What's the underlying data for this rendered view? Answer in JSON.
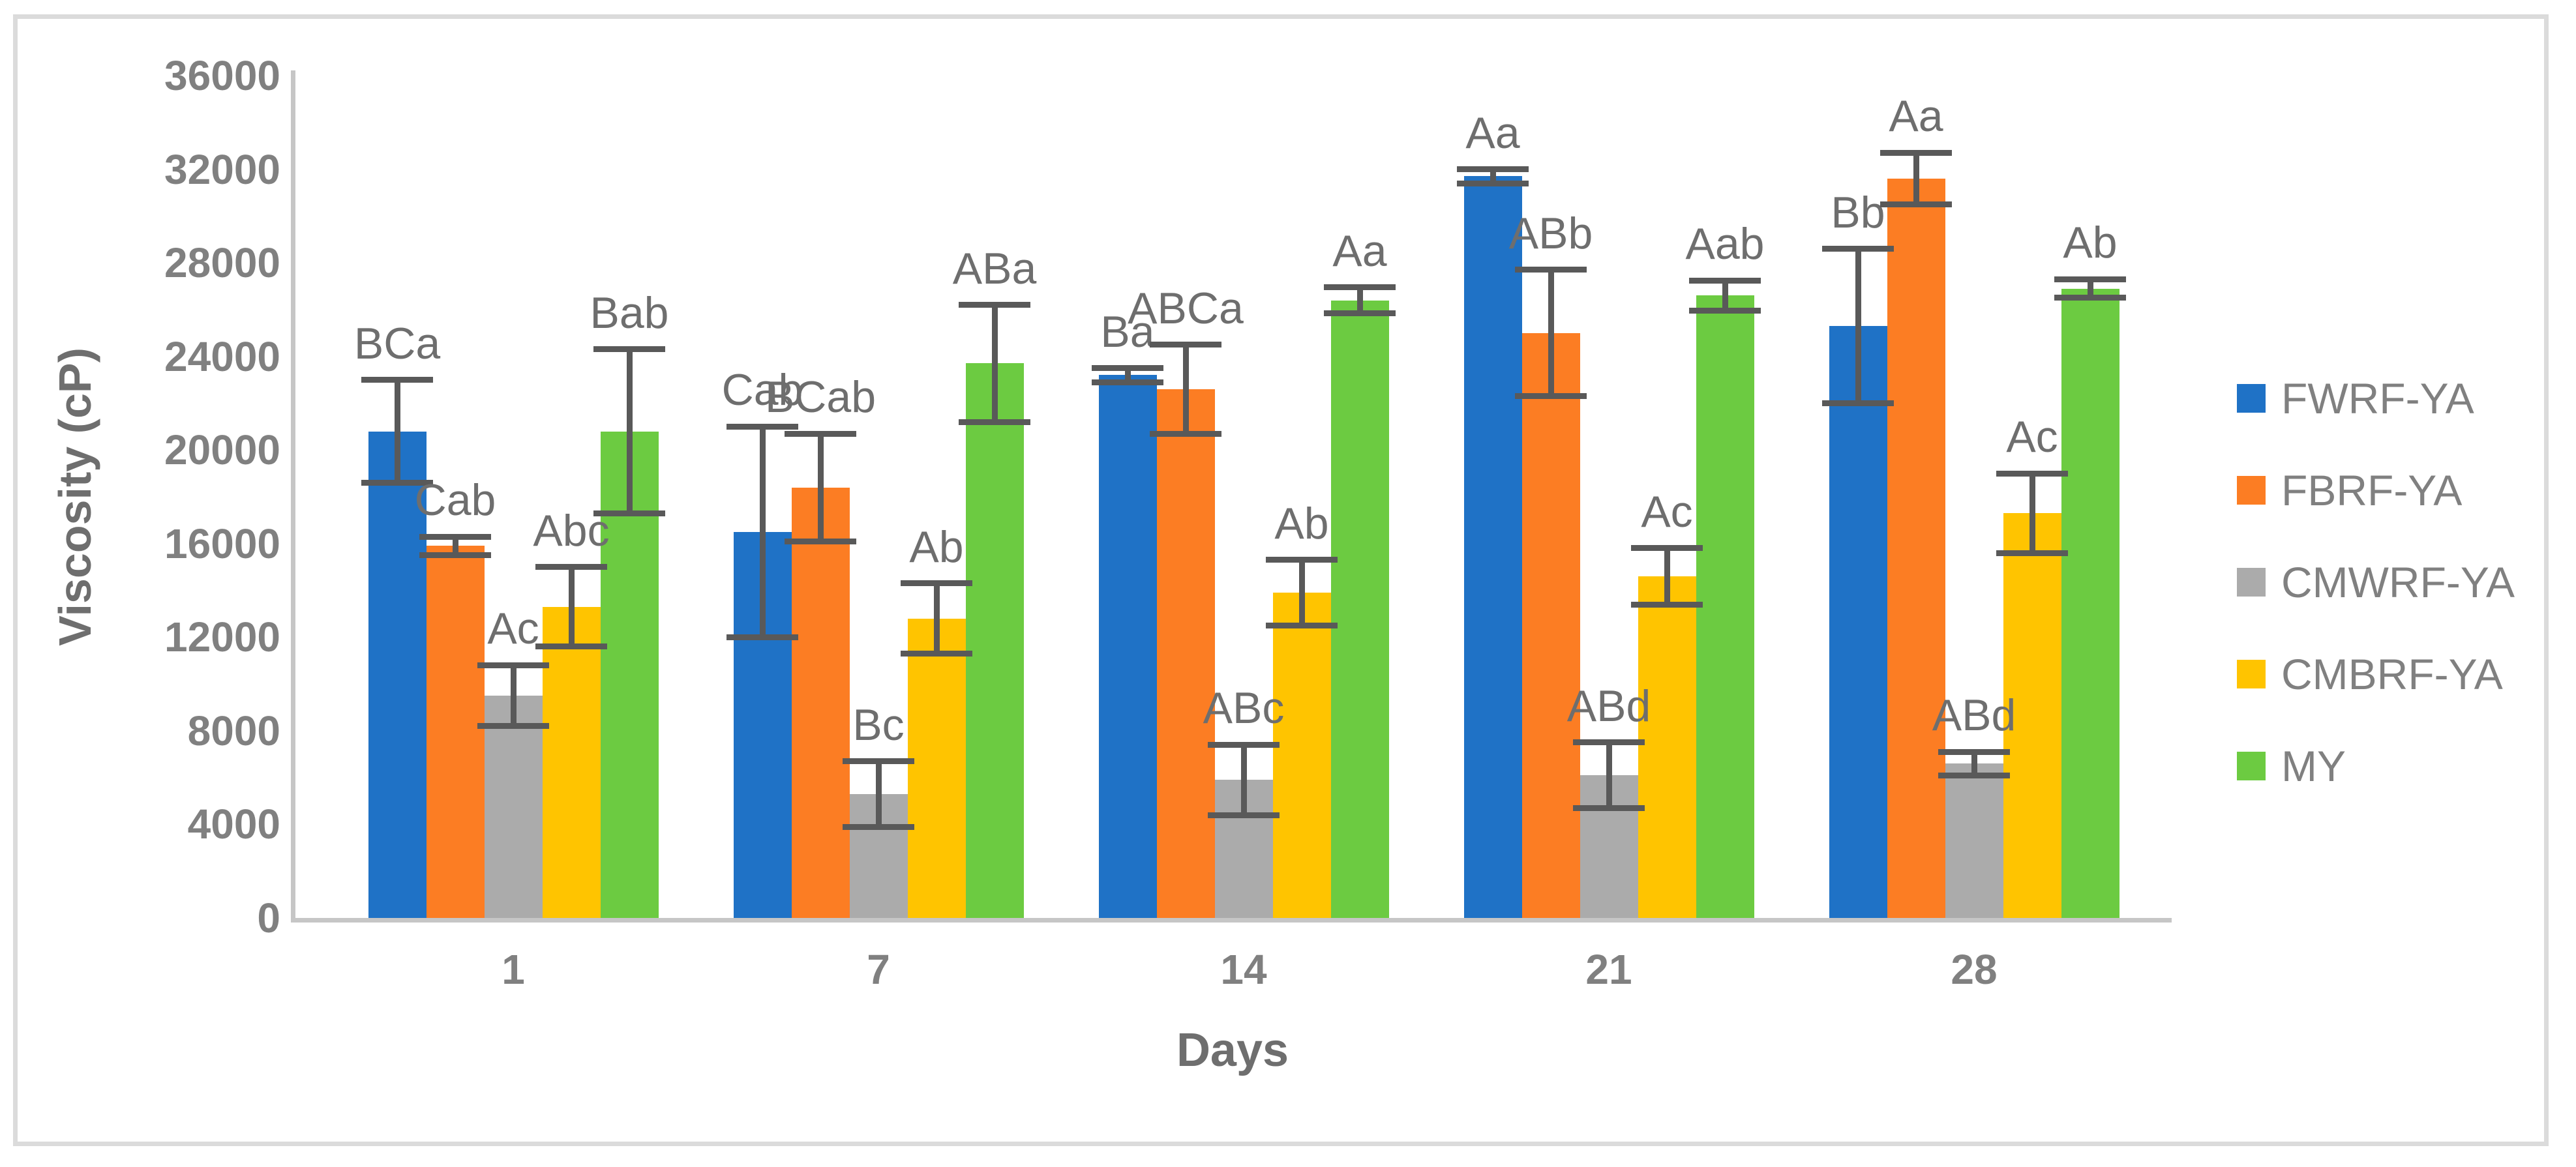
{
  "figure": {
    "background": "#ffffff",
    "border_color": "#dbdbdb",
    "axis_line_color": "#c6c6c6",
    "tick_text_color": "#808080",
    "label_text_color": "#6e6e6e"
  },
  "chart_data": {
    "type": "bar",
    "title": "",
    "xlabel": "Days",
    "ylabel": "Viscosity (cP)",
    "ylim": [
      0,
      36000
    ],
    "ytick_step": 4000,
    "yticks": [
      0,
      4000,
      8000,
      12000,
      16000,
      20000,
      24000,
      28000,
      32000,
      36000
    ],
    "categories": [
      "1",
      "7",
      "14",
      "21",
      "28"
    ],
    "grid": "off",
    "legend_position": "right",
    "error_bar_color": "#595959",
    "series": [
      {
        "name": "FWRF-YA",
        "color": "#1f72c6",
        "values": [
          20800,
          16500,
          23200,
          31700,
          25300
        ],
        "errors": [
          2200,
          4500,
          300,
          300,
          3300
        ],
        "sig_labels": [
          "BCa",
          "Cab",
          "Ba",
          "Aa",
          "Bb"
        ]
      },
      {
        "name": "FBRF-YA",
        "color": "#fc7d23",
        "values": [
          15900,
          18400,
          22600,
          25000,
          31600
        ],
        "errors": [
          400,
          2300,
          1900,
          2700,
          1100
        ],
        "sig_labels": [
          "Cab",
          "BCab",
          "ABCa",
          "ABb",
          "Aa"
        ]
      },
      {
        "name": "CMWRF-YA",
        "color": "#ababab",
        "values": [
          9500,
          5300,
          5900,
          6100,
          6600
        ],
        "errors": [
          1300,
          1400,
          1500,
          1400,
          500
        ],
        "sig_labels": [
          "Ac",
          "Bc",
          "ABc",
          "ABd",
          "ABd"
        ]
      },
      {
        "name": "CMBRF-YA",
        "color": "#ffc400",
        "values": [
          13300,
          12800,
          13900,
          14600,
          17300
        ],
        "errors": [
          1700,
          1500,
          1400,
          1200,
          1700
        ],
        "sig_labels": [
          "Abc",
          "Ab",
          "Ab",
          "Ac",
          "Ac"
        ]
      },
      {
        "name": "MY",
        "color": "#6ccb41",
        "values": [
          20800,
          23700,
          26400,
          26600,
          26900
        ],
        "errors": [
          3500,
          2500,
          550,
          650,
          400
        ],
        "sig_labels": [
          "Bab",
          "ABa",
          "Aa",
          "Aab",
          "Ab"
        ]
      }
    ]
  }
}
